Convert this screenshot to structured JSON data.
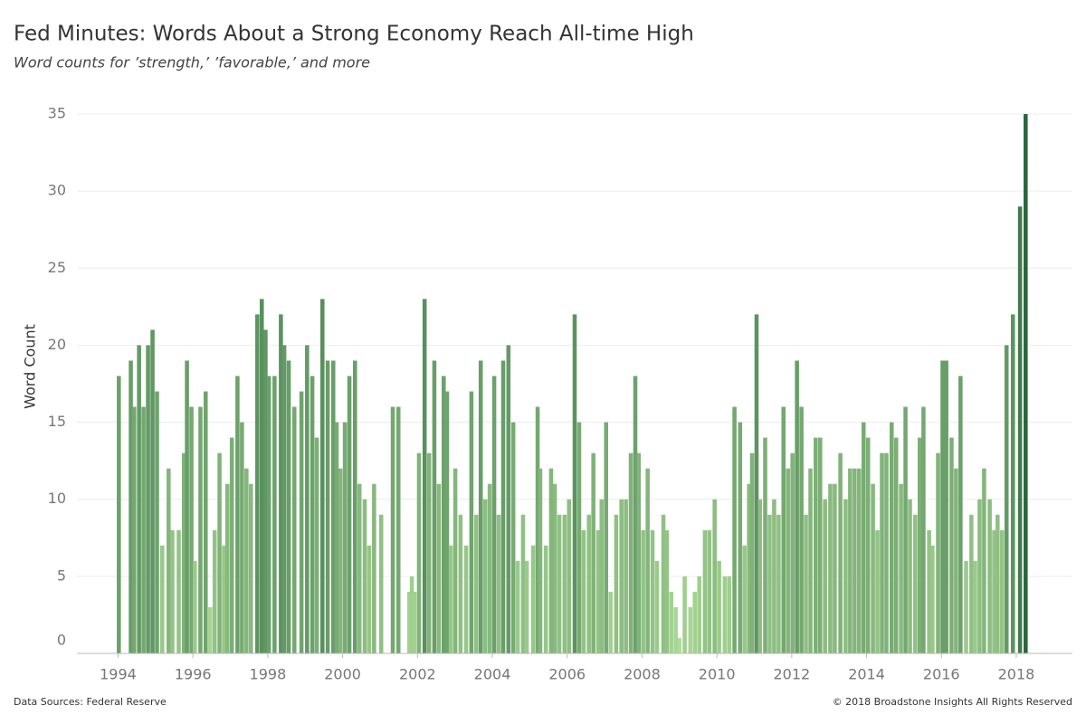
{
  "chart_data": {
    "type": "bar",
    "title": "Fed Minutes: Words About a Strong Economy Reach All-time High",
    "subtitle": "Word counts for ’strength,’ ’favorable,’ and more",
    "y_label": "Word Count",
    "source": "Data Sources: Federal Reserve",
    "copyright": "© 2018 Broadstone Insights All Rights Reserved",
    "xlim": [
      1992.9,
      2019.5
    ],
    "xticks": [
      1994,
      1996,
      1998,
      2000,
      2002,
      2004,
      2006,
      2008,
      2010,
      2012,
      2014,
      2016,
      2018
    ],
    "ylim": [
      0,
      36
    ],
    "yticks": [
      0,
      5,
      10,
      15,
      20,
      25,
      30,
      35
    ],
    "grid": true,
    "color_low": "#b3df9c",
    "color_high": "#25633a",
    "x": [
      1994.02,
      1994.34,
      1994.43,
      1994.56,
      1994.68,
      1994.8,
      1994.92,
      1995.04,
      1995.18,
      1995.35,
      1995.45,
      1995.62,
      1995.76,
      1995.84,
      1995.96,
      1996.05,
      1996.2,
      1996.34,
      1996.46,
      1996.58,
      1996.71,
      1996.83,
      1996.92,
      1997.04,
      1997.19,
      1997.31,
      1997.43,
      1997.55,
      1997.72,
      1997.84,
      1997.94,
      1998.03,
      1998.18,
      1998.35,
      1998.44,
      1998.56,
      1998.71,
      1998.9,
      1999.05,
      1999.19,
      1999.31,
      1999.46,
      1999.6,
      1999.75,
      1999.84,
      1999.94,
      2000.06,
      2000.18,
      2000.33,
      2000.45,
      2000.59,
      2000.71,
      2000.84,
      2001.03,
      2001.34,
      2001.49,
      2001.78,
      2001.85,
      2001.92,
      2002.04,
      2002.19,
      2002.31,
      2002.45,
      2002.57,
      2002.7,
      2002.79,
      2002.89,
      2003.01,
      2003.15,
      2003.3,
      2003.44,
      2003.57,
      2003.69,
      2003.81,
      2003.93,
      2004.05,
      2004.17,
      2004.29,
      2004.43,
      2004.56,
      2004.68,
      2004.82,
      2004.92,
      2005.09,
      2005.21,
      2005.28,
      2005.43,
      2005.57,
      2005.67,
      2005.79,
      2005.93,
      2006.05,
      2006.2,
      2006.32,
      2006.44,
      2006.58,
      2006.7,
      2006.83,
      2006.92,
      2007.04,
      2007.16,
      2007.31,
      2007.45,
      2007.57,
      2007.7,
      2007.82,
      2007.91,
      2008.03,
      2008.15,
      2008.28,
      2008.4,
      2008.57,
      2008.66,
      2008.78,
      2008.9,
      2009.0,
      2009.14,
      2009.29,
      2009.41,
      2009.53,
      2009.68,
      2009.8,
      2009.94,
      2010.06,
      2010.21,
      2010.33,
      2010.47,
      2010.62,
      2010.74,
      2010.86,
      2010.94,
      2011.06,
      2011.15,
      2011.29,
      2011.41,
      2011.53,
      2011.65,
      2011.78,
      2011.9,
      2012.02,
      2012.14,
      2012.26,
      2012.38,
      2012.5,
      2012.64,
      2012.76,
      2012.89,
      2013.03,
      2013.15,
      2013.3,
      2013.44,
      2013.56,
      2013.68,
      2013.8,
      2013.92,
      2014.04,
      2014.17,
      2014.29,
      2014.41,
      2014.53,
      2014.67,
      2014.79,
      2014.92,
      2015.04,
      2015.16,
      2015.3,
      2015.42,
      2015.52,
      2015.67,
      2015.76,
      2015.91,
      2016.03,
      2016.13,
      2016.27,
      2016.39,
      2016.51,
      2016.66,
      2016.8,
      2016.9,
      2017.02,
      2017.14,
      2017.29,
      2017.41,
      2017.5,
      2017.62,
      2017.74,
      2017.91,
      2018.1,
      2018.25
    ],
    "values": [
      18,
      19,
      16,
      20,
      16,
      20,
      21,
      17,
      7,
      12,
      8,
      8,
      13,
      19,
      16,
      6,
      16,
      17,
      3,
      8,
      13,
      7,
      11,
      14,
      18,
      15,
      12,
      11,
      22,
      23,
      21,
      18,
      18,
      22,
      20,
      19,
      16,
      17,
      20,
      18,
      14,
      23,
      19,
      19,
      15,
      12,
      15,
      18,
      19,
      11,
      10,
      7,
      11,
      9,
      16,
      16,
      4,
      5,
      4,
      13,
      23,
      13,
      19,
      11,
      18,
      17,
      7,
      12,
      9,
      7,
      17,
      9,
      19,
      10,
      11,
      18,
      9,
      19,
      20,
      15,
      6,
      9,
      6,
      7,
      16,
      12,
      7,
      12,
      11,
      9,
      9,
      10,
      22,
      15,
      8,
      9,
      13,
      8,
      10,
      15,
      4,
      9,
      10,
      10,
      13,
      18,
      13,
      8,
      12,
      8,
      6,
      9,
      8,
      4,
      3,
      1,
      5,
      3,
      4,
      5,
      8,
      8,
      10,
      6,
      5,
      5,
      16,
      15,
      7,
      11,
      13,
      22,
      10,
      14,
      9,
      10,
      9,
      16,
      12,
      13,
      19,
      16,
      9,
      12,
      14,
      14,
      10,
      11,
      11,
      13,
      10,
      12,
      12,
      12,
      15,
      14,
      11,
      8,
      13,
      13,
      15,
      14,
      11,
      16,
      10,
      9,
      14,
      16,
      8,
      7,
      13,
      19,
      19,
      14,
      12,
      18,
      6,
      9,
      6,
      10,
      12,
      10,
      8,
      9,
      8,
      20,
      22,
      29,
      35
    ]
  }
}
